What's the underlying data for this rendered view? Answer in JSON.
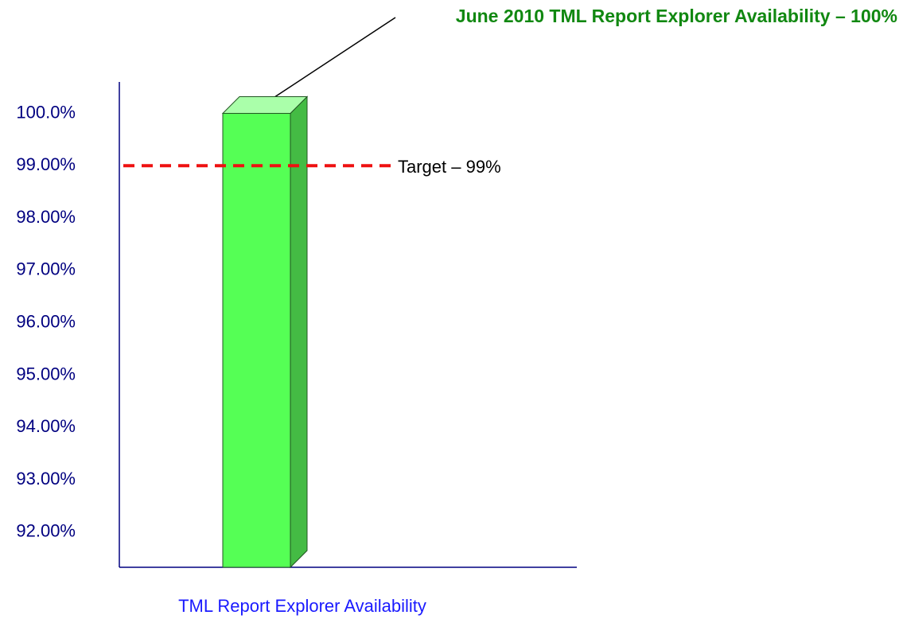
{
  "chart_data": {
    "type": "bar3d",
    "annotation": "June 2010 TML Report Explorer Availability – 100%",
    "categories": [
      "TML Report Explorer Availability"
    ],
    "values": [
      100
    ],
    "color": "#55ff55",
    "ylim": [
      91.33,
      100.6
    ],
    "yticks": [
      {
        "value": 92,
        "label": "92.00%"
      },
      {
        "value": 93,
        "label": "93.00%"
      },
      {
        "value": 94,
        "label": "94.00%"
      },
      {
        "value": 95,
        "label": "95.00%"
      },
      {
        "value": 96,
        "label": "96.00%"
      },
      {
        "value": 97,
        "label": "97.00%"
      },
      {
        "value": 98,
        "label": "98.00%"
      },
      {
        "value": 99,
        "label": "99.00%"
      },
      {
        "value": 100,
        "label": "100.0%"
      }
    ],
    "target": {
      "value": 99,
      "label": "Target – 99%",
      "color": "#ee1111"
    },
    "grid": false
  }
}
